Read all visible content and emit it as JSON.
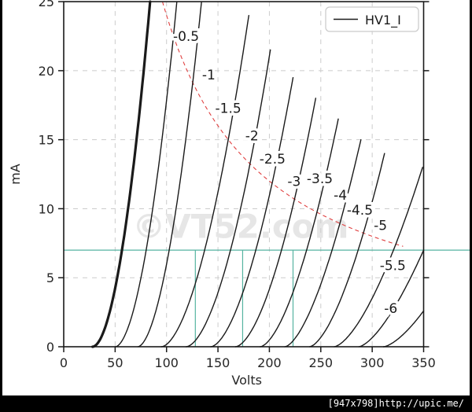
{
  "caption": {
    "text": "[947x798]http://upic.me/"
  },
  "figure": {
    "watermark": "©VT52.com",
    "legend_label": "HV1_I"
  },
  "chart_data": {
    "type": "line",
    "title": "",
    "xlabel": "Volts",
    "ylabel": "mA",
    "xlim": [
      0,
      350
    ],
    "ylim": [
      0,
      25
    ],
    "xticks": [
      0,
      50,
      100,
      150,
      200,
      250,
      300,
      350
    ],
    "yticks": [
      0,
      5,
      10,
      15,
      20,
      25
    ],
    "grid": true,
    "grid_color": "#cccccc",
    "curve_color": "#1a1a1a",
    "legend": {
      "position": "upper right",
      "entries": [
        "HV1_I"
      ]
    },
    "series": [
      {
        "name": "0",
        "bias_v": 0,
        "foot_v": 28,
        "end_v": 84,
        "end_i": 25,
        "p": 1.9,
        "thick": true,
        "label": null
      },
      {
        "name": "-0.5",
        "bias_v": -0.5,
        "foot_v": 50,
        "end_v": 110,
        "end_i": 25,
        "p": 1.85,
        "thick": false,
        "label": {
          "v": 119,
          "i": 22.5
        }
      },
      {
        "name": "-1",
        "bias_v": -1,
        "foot_v": 72,
        "end_v": 134,
        "end_i": 25,
        "p": 1.8,
        "thick": false,
        "label": {
          "v": 141,
          "i": 19.7
        }
      },
      {
        "name": "-1.5",
        "bias_v": -1.5,
        "foot_v": 95,
        "end_v": 180,
        "end_i": 24,
        "p": 1.75,
        "thick": false,
        "label": {
          "v": 160,
          "i": 17.3
        }
      },
      {
        "name": "-2",
        "bias_v": -2,
        "foot_v": 119,
        "end_v": 201,
        "end_i": 21.5,
        "p": 1.75,
        "thick": false,
        "label": {
          "v": 183,
          "i": 15.3
        }
      },
      {
        "name": "-2.5",
        "bias_v": -2.5,
        "foot_v": 143,
        "end_v": 223,
        "end_i": 19.5,
        "p": 1.7,
        "thick": false,
        "label": {
          "v": 203,
          "i": 13.6
        }
      },
      {
        "name": "-3",
        "bias_v": -3,
        "foot_v": 167,
        "end_v": 245,
        "end_i": 18,
        "p": 1.7,
        "thick": false,
        "label": {
          "v": 224,
          "i": 12.0
        }
      },
      {
        "name": "-3.5",
        "bias_v": -3.5,
        "foot_v": 191,
        "end_v": 267,
        "end_i": 16.5,
        "p": 1.65,
        "thick": false,
        "label": {
          "v": 249,
          "i": 12.2
        }
      },
      {
        "name": "-4",
        "bias_v": -4,
        "foot_v": 215,
        "end_v": 289,
        "end_i": 15,
        "p": 1.6,
        "thick": false,
        "label": {
          "v": 269,
          "i": 11.0
        }
      },
      {
        "name": "-4.5",
        "bias_v": -4.5,
        "foot_v": 239,
        "end_v": 312,
        "end_i": 14,
        "p": 1.6,
        "thick": false,
        "label": {
          "v": 288,
          "i": 9.9
        }
      },
      {
        "name": "-5",
        "bias_v": -5,
        "foot_v": 263,
        "end_v": 349,
        "end_i": 13,
        "p": 1.55,
        "thick": false,
        "label": {
          "v": 308,
          "i": 8.8
        }
      },
      {
        "name": "-5.5",
        "bias_v": -5.5,
        "foot_v": 287,
        "end_v": 350,
        "end_i": 7,
        "p": 1.5,
        "thick": false,
        "label": {
          "v": 320,
          "i": 5.9
        }
      },
      {
        "name": "-6",
        "bias_v": -6,
        "foot_v": 311,
        "end_v": 350,
        "end_i": 2.6,
        "p": 1.5,
        "thick": false,
        "label": {
          "v": 318,
          "i": 2.8
        }
      }
    ],
    "max_dissipation_curve": {
      "power_ma_x_v": 2400,
      "v_start": 96,
      "v_end": 330,
      "color": "#e04040",
      "style": "dashed"
    },
    "cursor_lines": {
      "color": "#55b3a1",
      "horizontal_ma": 7,
      "verticals_v": [
        128,
        174,
        223
      ]
    },
    "annotations": [
      {
        "text": "©VT52.com",
        "v_center": 172,
        "i_center": 7.9,
        "color": "#d9d9d9"
      }
    ]
  }
}
